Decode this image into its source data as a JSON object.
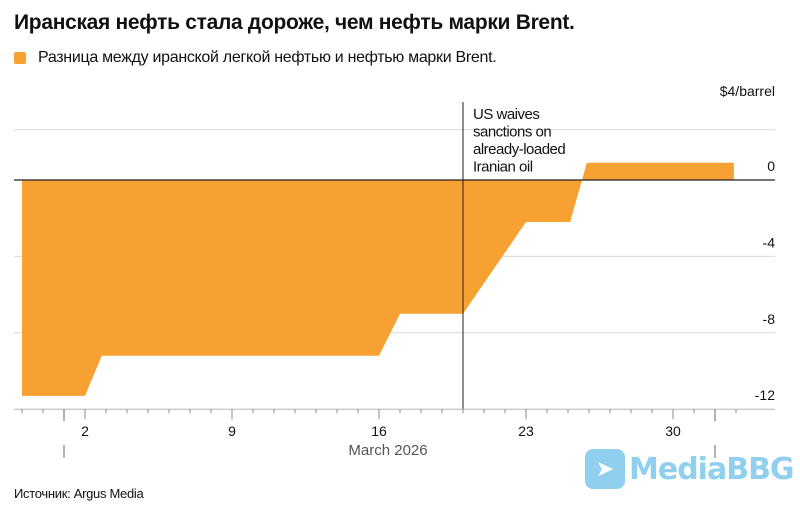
{
  "chart_data": {
    "type": "area",
    "title": "Иранская нефть стала дороже, чем нефть марки Brent.",
    "legend": [
      {
        "name": "Разница между иранской легкой нефтью и нефтью марки Brent.",
        "color": "#F7A132"
      }
    ],
    "unit_label": "$4/barrel",
    "xlabel": "March 2026",
    "x_ticks": [
      2,
      9,
      16,
      23,
      30
    ],
    "x_tick_labels": [
      "2",
      "9",
      "16",
      "23",
      "30"
    ],
    "y_ticks": [
      0,
      -4,
      -8,
      -12
    ],
    "y_tick_labels": [
      "0",
      "-4",
      "-8",
      "-12"
    ],
    "ylim": [
      -12,
      4
    ],
    "xlim": [
      -2,
      34
    ],
    "x_unit": "day of March 2026",
    "series": [
      {
        "name": "Разница между иранской легкой нефтью и нефтью марки Brent.",
        "x": [
          -1,
          2,
          2.8,
          16,
          17,
          20,
          23,
          25.1,
          25.9,
          32.9
        ],
        "y": [
          -11.3,
          -11.3,
          -9.2,
          -9.2,
          -7.0,
          -7.0,
          -2.2,
          -2.2,
          0.9,
          0.9
        ]
      }
    ],
    "annotation": {
      "x": 20,
      "text": [
        "US waives",
        "sanctions on",
        "already-loaded",
        "Iranian oil"
      ]
    },
    "grid": true
  },
  "source": "Источник: Argus Media",
  "watermark": "MediaBBG",
  "colors": {
    "area": "#F7A132",
    "grid": "#d9d9d9",
    "axis": "#222222"
  }
}
